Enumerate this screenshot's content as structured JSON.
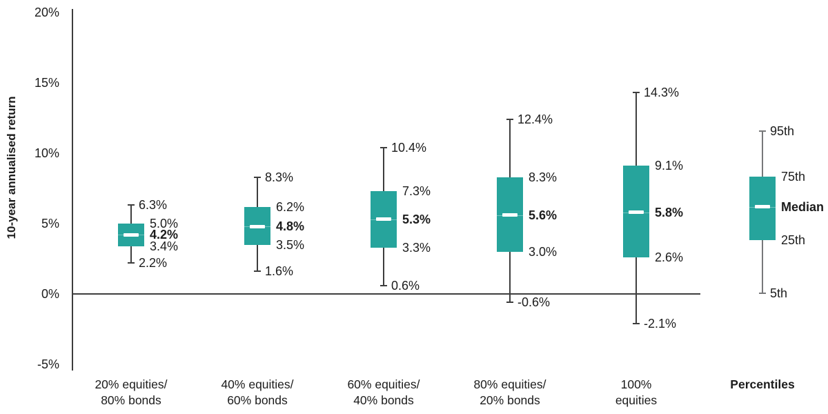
{
  "chart_data": {
    "type": "boxplot",
    "title": "",
    "ylabel": "10-year annualised return",
    "xlabel": "",
    "ylim": [
      -5,
      20
    ],
    "grid": false,
    "legend_position": "right-inline",
    "yticks": [
      {
        "v": 20,
        "label": "20%"
      },
      {
        "v": 15,
        "label": "15%"
      },
      {
        "v": 10,
        "label": "10%"
      },
      {
        "v": 5,
        "label": "5%"
      },
      {
        "v": 0,
        "label": "0%"
      },
      {
        "v": -5,
        "label": "-5%"
      }
    ],
    "series": [
      {
        "category_lines": [
          "20% equities/",
          "80% bonds"
        ],
        "p95": 6.3,
        "p75": 5.0,
        "median": 4.2,
        "p25": 3.4,
        "p5": 2.2,
        "labels": {
          "p95": "6.3%",
          "p75": "5.0%",
          "median": "4.2%",
          "p25": "3.4%",
          "p5": "2.2%"
        }
      },
      {
        "category_lines": [
          "40% equities/",
          "60% bonds"
        ],
        "p95": 8.3,
        "p75": 6.2,
        "median": 4.8,
        "p25": 3.5,
        "p5": 1.6,
        "labels": {
          "p95": "8.3%",
          "p75": "6.2%",
          "median": "4.8%",
          "p25": "3.5%",
          "p5": "1.6%"
        }
      },
      {
        "category_lines": [
          "60% equities/",
          "40% bonds"
        ],
        "p95": 10.4,
        "p75": 7.3,
        "median": 5.3,
        "p25": 3.3,
        "p5": 0.6,
        "labels": {
          "p95": "10.4%",
          "p75": "7.3%",
          "median": "5.3%",
          "p25": "3.3%",
          "p5": "0.6%"
        }
      },
      {
        "category_lines": [
          "80% equities/",
          "20% bonds"
        ],
        "p95": 12.4,
        "p75": 8.3,
        "median": 5.6,
        "p25": 3.0,
        "p5": -0.6,
        "labels": {
          "p95": "12.4%",
          "p75": "8.3%",
          "median": "5.6%",
          "p25": "3.0%",
          "p5": "-0.6%"
        }
      },
      {
        "category_lines": [
          "100%",
          "equities"
        ],
        "p95": 14.3,
        "p75": 9.1,
        "median": 5.8,
        "p25": 2.6,
        "p5": -2.1,
        "labels": {
          "p95": "14.3%",
          "p75": "9.1%",
          "median": "5.8%",
          "p25": "2.6%",
          "p5": "-2.1%"
        }
      }
    ],
    "legend_series": {
      "category_lines": [
        "Percentiles"
      ],
      "category_bold": true,
      "display": {
        "p95": 11.55,
        "p75": 8.35,
        "median": 6.2,
        "p25": 3.8,
        "p5": 0.05
      },
      "labels": {
        "p95": "95th",
        "p75": "75th",
        "median": "Median",
        "p25": "25th",
        "p5": "5th"
      }
    },
    "colors": {
      "box": "#26a49c",
      "whisker": "#3d3d3d",
      "legend_whisker": "#77787a",
      "median_dash": "#ffffff",
      "axis": "#3d3d3d",
      "text": "#1c1c1c"
    }
  }
}
